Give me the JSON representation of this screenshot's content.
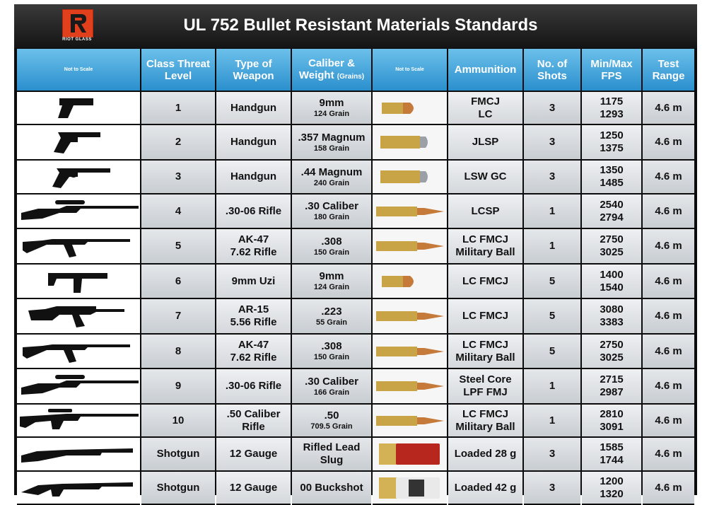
{
  "header": {
    "title": "UL 752 Bullet Resistant Materials Standards",
    "logo_text": "RIOT GLASS",
    "logo_color": "#e2401c"
  },
  "columns": {
    "weapon_image": "Not to Scale",
    "class": "Class Threat Level",
    "weapon": "Type of Weapon",
    "caliber": "Caliber &",
    "caliber_line2": "Weight",
    "caliber_unit": "(Grains)",
    "bullet_image": "Not to Scale",
    "ammunition": "Ammunition",
    "shots": "No. of Shots",
    "fps": "Min/Max FPS",
    "range": "Test Range"
  },
  "colors": {
    "header_blue": "#2b8fce",
    "brass": "#c9a447",
    "copper": "#c57a3a"
  },
  "rows": [
    {
      "weapon_icon": "pistol-icon",
      "class": "1",
      "weapon": [
        "Handgun"
      ],
      "caliber": "9mm",
      "weight": "124 Grain",
      "bullet_icon": "9mm-bullet-icon",
      "ammo": [
        "FMCJ",
        "LC"
      ],
      "shots": "3",
      "fps_min": "1175",
      "fps_max": "1293",
      "range": "4.6 m"
    },
    {
      "weapon_icon": "revolver-icon",
      "class": "2",
      "weapon": [
        "Handgun"
      ],
      "caliber": ".357 Magnum",
      "weight": "158 Grain",
      "bullet_icon": "357-magnum-cartridge-icon",
      "ammo": [
        "JLSP"
      ],
      "shots": "3",
      "fps_min": "1250",
      "fps_max": "1375",
      "range": "4.6 m"
    },
    {
      "weapon_icon": "long-revolver-icon",
      "class": "3",
      "weapon": [
        "Handgun"
      ],
      "caliber": ".44 Magnum",
      "weight": "240 Grain",
      "bullet_icon": "44-magnum-cartridge-icon",
      "ammo": [
        "LSW GC"
      ],
      "shots": "3",
      "fps_min": "1350",
      "fps_max": "1485",
      "range": "4.6 m"
    },
    {
      "weapon_icon": "scoped-rifle-icon",
      "class": "4",
      "weapon": [
        ".30-06 Rifle"
      ],
      "caliber": ".30 Caliber",
      "weight": "180 Grain",
      "bullet_icon": "rifle-cartridge-icon",
      "ammo": [
        "LCSP"
      ],
      "shots": "1",
      "fps_min": "2540",
      "fps_max": "2794",
      "range": "4.6 m"
    },
    {
      "weapon_icon": "ak47-icon",
      "class": "5",
      "weapon": [
        "AK-47",
        "7.62 Rifle"
      ],
      "caliber": ".308",
      "weight": "150 Grain",
      "bullet_icon": "308-cartridge-icon",
      "ammo": [
        "LC FMCJ",
        "Military Ball"
      ],
      "shots": "1",
      "fps_min": "2750",
      "fps_max": "3025",
      "range": "4.6 m"
    },
    {
      "weapon_icon": "uzi-icon",
      "class": "6",
      "weapon": [
        "9mm Uzi"
      ],
      "caliber": "9mm",
      "weight": "124 Grain",
      "bullet_icon": "9mm-bullet-icon",
      "ammo": [
        "LC FMCJ"
      ],
      "shots": "5",
      "fps_min": "1400",
      "fps_max": "1540",
      "range": "4.6 m"
    },
    {
      "weapon_icon": "ar15-icon",
      "class": "7",
      "weapon": [
        "AR-15",
        "5.56 Rifle"
      ],
      "caliber": ".223",
      "weight": "55 Grain",
      "bullet_icon": "223-cartridge-icon",
      "ammo": [
        "LC FMCJ"
      ],
      "shots": "5",
      "fps_min": "3080",
      "fps_max": "3383",
      "range": "4.6 m"
    },
    {
      "weapon_icon": "ak47-icon",
      "class": "8",
      "weapon": [
        "AK-47",
        "7.62 Rifle"
      ],
      "caliber": ".308",
      "weight": "150 Grain",
      "bullet_icon": "308-cartridge-icon",
      "ammo": [
        "LC FMCJ",
        "Military Ball"
      ],
      "shots": "5",
      "fps_min": "2750",
      "fps_max": "3025",
      "range": "4.6 m"
    },
    {
      "weapon_icon": "scoped-rifle-icon",
      "class": "9",
      "weapon": [
        ".30-06 Rifle"
      ],
      "caliber": ".30 Caliber",
      "weight": "166 Grain",
      "bullet_icon": "rifle-cartridge-icon",
      "ammo": [
        "Steel Core",
        "LPF FMJ"
      ],
      "shots": "1",
      "fps_min": "2715",
      "fps_max": "2987",
      "range": "4.6 m"
    },
    {
      "weapon_icon": "50cal-rifle-icon",
      "class": "10",
      "weapon": [
        ".50 Caliber",
        "Rifle"
      ],
      "caliber": ".50",
      "weight": "709.5 Grain",
      "bullet_icon": "50cal-cartridge-icon",
      "ammo": [
        "LC FMCJ",
        "Military Ball"
      ],
      "shots": "1",
      "fps_min": "2810",
      "fps_max": "3091",
      "range": "4.6 m"
    },
    {
      "weapon_icon": "pump-shotgun-icon",
      "class": "Shotgun",
      "weapon": [
        "12 Gauge"
      ],
      "caliber": "Rifled Lead",
      "caliber2": "Slug",
      "weight": "",
      "bullet_icon": "red-shotshell-icon",
      "ammo": [
        "Loaded 28 g"
      ],
      "shots": "3",
      "fps_min": "1585",
      "fps_max": "1744",
      "range": "4.6 m"
    },
    {
      "weapon_icon": "tactical-shotgun-icon",
      "class": "Shotgun",
      "weapon": [
        "12 Gauge"
      ],
      "caliber": "00 Buckshot",
      "weight": "",
      "bullet_icon": "white-shotshell-icon",
      "ammo": [
        "Loaded 42 g"
      ],
      "shots": "3",
      "fps_min": "1200",
      "fps_max": "1320",
      "range": "4.6 m"
    }
  ]
}
